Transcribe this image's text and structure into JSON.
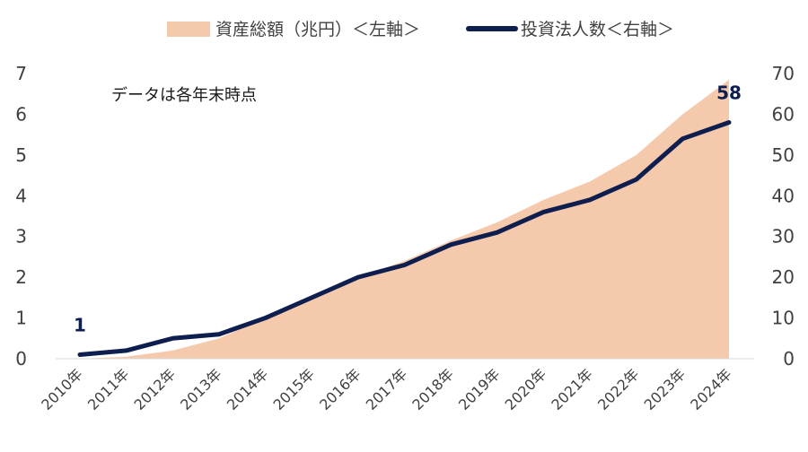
{
  "chart_data": {
    "type": "area+line",
    "categories": [
      "2010年",
      "2011年",
      "2012年",
      "2013年",
      "2014年",
      "2015年",
      "2016年",
      "2017年",
      "2018年",
      "2019年",
      "2020年",
      "2021年",
      "2022年",
      "2023年",
      "2024年"
    ],
    "series": [
      {
        "name": "資産総額（兆円）＜左軸＞",
        "type": "area",
        "axis": "left",
        "color": "#F5C9AC",
        "values": [
          0.0,
          0.05,
          0.2,
          0.5,
          1.0,
          1.5,
          2.0,
          2.4,
          2.9,
          3.35,
          3.9,
          4.35,
          5.0,
          6.0,
          6.85
        ]
      },
      {
        "name": "投資法人数＜右軸＞",
        "type": "line",
        "axis": "right",
        "color": "#0E1E4F",
        "values": [
          1,
          2,
          5,
          6,
          10,
          15,
          20,
          23,
          28,
          31,
          36,
          39,
          44,
          54,
          58
        ]
      }
    ],
    "y_left": {
      "ylim": [
        0,
        7
      ],
      "ticks": [
        "0",
        "1",
        "2",
        "3",
        "4",
        "5",
        "6",
        "7"
      ]
    },
    "y_right": {
      "ylim": [
        0,
        70
      ],
      "ticks": [
        "0",
        "10",
        "20",
        "30",
        "40",
        "50",
        "60",
        "70"
      ]
    },
    "annotation": "データは各年末時点",
    "data_labels": [
      {
        "index": 0,
        "series": 1,
        "text": "1"
      },
      {
        "index": 14,
        "series": 1,
        "text": "58"
      }
    ],
    "legend_position": "top"
  }
}
